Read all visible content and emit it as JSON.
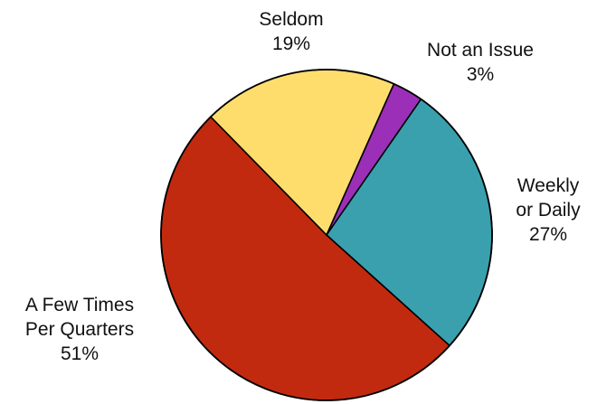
{
  "chart_data": {
    "type": "pie",
    "start_angle_deg": 24,
    "direction": "clockwise",
    "slices": [
      {
        "name": "Not an Issue",
        "label_lines": [
          "Not an Issue"
        ],
        "percent_label": "3%",
        "value": 3,
        "color": "#9b2fb8"
      },
      {
        "name": "Weekly or Daily",
        "label_lines": [
          "Weekly",
          "or Daily"
        ],
        "percent_label": "27%",
        "value": 27,
        "color": "#3aa0ae"
      },
      {
        "name": "A Few Times Per Quarters",
        "label_lines": [
          "A Few Times",
          "Per Quarters"
        ],
        "percent_label": "51%",
        "value": 51,
        "color": "#c22a10"
      },
      {
        "name": "Seldom",
        "label_lines": [
          "Seldom"
        ],
        "percent_label": "19%",
        "value": 19,
        "color": "#fedd6d"
      }
    ],
    "legend": "none"
  }
}
